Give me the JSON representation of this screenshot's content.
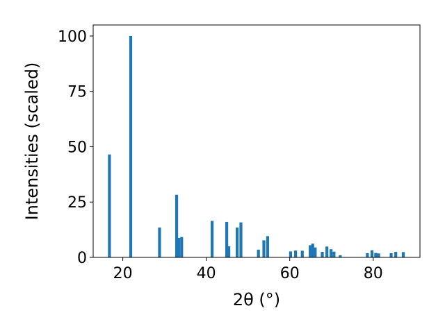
{
  "chart_data": {
    "type": "bar",
    "xlabel": "2θ (°)",
    "ylabel": "Intensities (scaled)",
    "xlim": [
      12.9,
      91.2
    ],
    "ylim": [
      0,
      105
    ],
    "x_ticks": [
      20,
      40,
      60,
      80
    ],
    "y_ticks": [
      0,
      25,
      50,
      75,
      100
    ],
    "bar_width": 0.7,
    "grid": false,
    "colors": {
      "bar": "#1f77b4",
      "axes": "#000000"
    },
    "series": [
      {
        "x": [
          16.8,
          21.9,
          28.8,
          32.9,
          33.4,
          34.1,
          41.4,
          44.9,
          45.4,
          47.4,
          48.3,
          52.5,
          53.8,
          54.7,
          60.2,
          61.4,
          63.0,
          64.9,
          65.5,
          66.1,
          67.8,
          68.9,
          69.9,
          70.6,
          72.1,
          78.6,
          79.7,
          80.6,
          81.3,
          84.3,
          85.4,
          87.2
        ],
        "values": [
          46.5,
          100.0,
          13.5,
          28.3,
          8.8,
          9.2,
          16.5,
          16.0,
          5.0,
          13.5,
          15.8,
          3.5,
          7.7,
          9.6,
          2.7,
          3.1,
          3.0,
          5.5,
          6.2,
          4.5,
          2.5,
          4.9,
          3.7,
          2.6,
          1.0,
          1.9,
          3.2,
          2.0,
          1.8,
          1.9,
          2.5,
          2.4
        ]
      }
    ]
  }
}
